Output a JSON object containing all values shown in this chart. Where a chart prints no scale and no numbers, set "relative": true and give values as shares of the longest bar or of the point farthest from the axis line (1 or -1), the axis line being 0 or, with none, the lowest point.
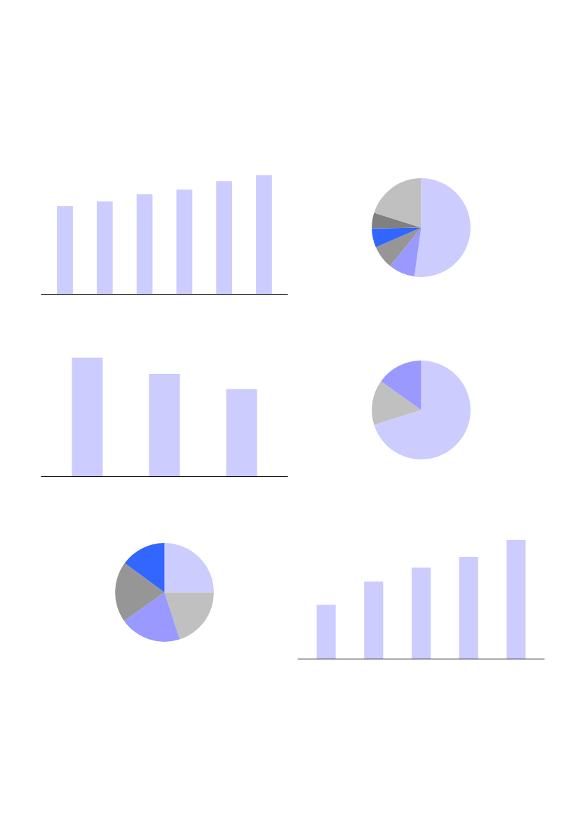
{
  "chart_data": [
    {
      "type": "bar",
      "relative": true,
      "categories": [
        null,
        null,
        null,
        null,
        null,
        null
      ],
      "values": [
        0.74,
        0.78,
        0.84,
        0.88,
        0.95,
        1
      ],
      "color": "#ccccff",
      "grid": false
    },
    {
      "type": "pie",
      "categories": [
        null,
        null,
        null,
        null,
        null,
        null
      ],
      "values": [
        52.2,
        8.6,
        7.7,
        6.2,
        5.2,
        20.1
      ],
      "colors": [
        "#ccccff",
        "#9999ff",
        "#969696",
        "#3366ff",
        "#808080",
        "#c0c0c0"
      ]
    },
    {
      "type": "bar",
      "relative": true,
      "categories": [
        null,
        null,
        null
      ],
      "values": [
        1,
        0.863,
        0.735
      ],
      "color": "#ccccff",
      "grid": false
    },
    {
      "type": "pie",
      "categories": [
        null,
        null,
        null
      ],
      "values": [
        70.1,
        14.8,
        15.1
      ],
      "colors": [
        "#ccccff",
        "#c0c0c0",
        "#9999ff"
      ]
    },
    {
      "type": "pie",
      "categories": [
        null,
        null,
        null,
        null,
        null
      ],
      "values": [
        25,
        20,
        20.2,
        19.9,
        14.9
      ],
      "colors": [
        "#ccccff",
        "#c0c0c0",
        "#9999ff",
        "#969696",
        "#3366ff"
      ]
    },
    {
      "type": "bar",
      "relative": true,
      "categories": [
        null,
        null,
        null,
        null,
        null
      ],
      "values": [
        0.455,
        0.652,
        0.768,
        0.857,
        1
      ],
      "color": "#ccccff",
      "grid": false
    }
  ]
}
